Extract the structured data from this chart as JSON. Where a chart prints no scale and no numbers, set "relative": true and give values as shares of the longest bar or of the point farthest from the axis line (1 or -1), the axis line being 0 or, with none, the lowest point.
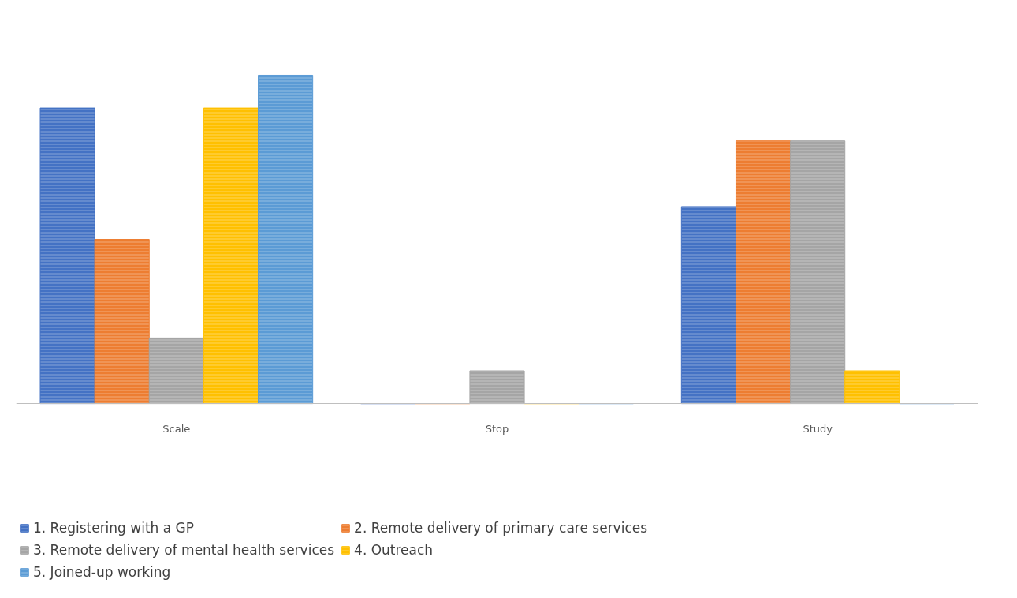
{
  "chart_data": {
    "type": "bar",
    "relative": true,
    "categories": [
      "Scale",
      "Stop",
      "Study"
    ],
    "series": [
      {
        "name": "1. Registering with a GP",
        "color": "#4472c4",
        "values": [
          0.9,
          0,
          0.6
        ]
      },
      {
        "name": "2. Remote delivery of primary care services",
        "color": "#ed7d31",
        "values": [
          0.5,
          0,
          0.8
        ]
      },
      {
        "name": "3. Remote delivery of mental health services",
        "color": "#a5a5a5",
        "values": [
          0.2,
          0.1,
          0.8
        ]
      },
      {
        "name": "4. Outreach",
        "color": "#ffc000",
        "values": [
          0.9,
          0,
          0.1
        ]
      },
      {
        "name": "5. Joined-up working",
        "color": "#5b9bd5",
        "values": [
          1.0,
          0,
          0
        ]
      }
    ],
    "legend": "bottom"
  }
}
